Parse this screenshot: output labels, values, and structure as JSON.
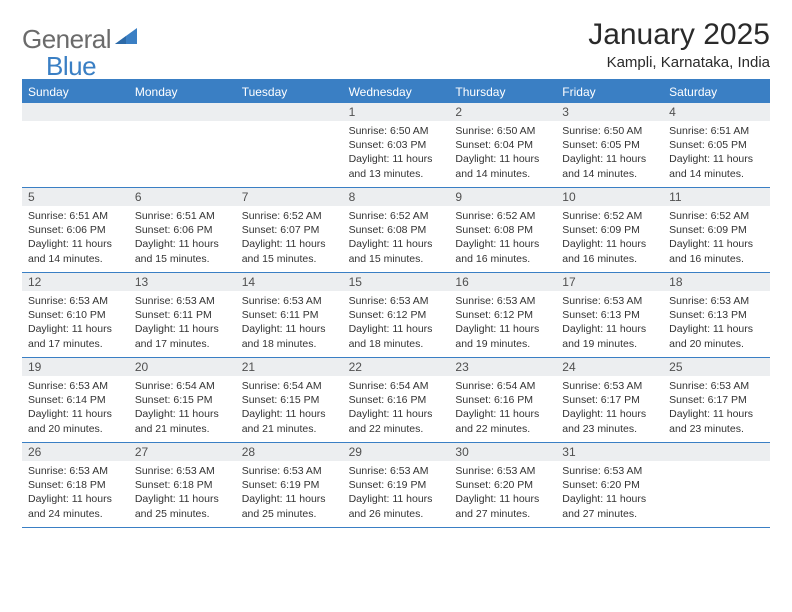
{
  "logo": {
    "text1": "General",
    "text2": "Blue"
  },
  "title": "January 2025",
  "subtitle": "Kampli, Karnataka, India",
  "dayNames": [
    "Sunday",
    "Monday",
    "Tuesday",
    "Wednesday",
    "Thursday",
    "Friday",
    "Saturday"
  ],
  "colors": {
    "accent": "#3a7fc4",
    "headerText": "#ffffff",
    "dayNumBg": "#eceef0",
    "text": "#333333",
    "logoGray": "#6b6b6b"
  },
  "weeks": [
    [
      {
        "num": "",
        "lines": []
      },
      {
        "num": "",
        "lines": []
      },
      {
        "num": "",
        "lines": []
      },
      {
        "num": "1",
        "lines": [
          "Sunrise: 6:50 AM",
          "Sunset: 6:03 PM",
          "Daylight: 11 hours and 13 minutes."
        ]
      },
      {
        "num": "2",
        "lines": [
          "Sunrise: 6:50 AM",
          "Sunset: 6:04 PM",
          "Daylight: 11 hours and 14 minutes."
        ]
      },
      {
        "num": "3",
        "lines": [
          "Sunrise: 6:50 AM",
          "Sunset: 6:05 PM",
          "Daylight: 11 hours and 14 minutes."
        ]
      },
      {
        "num": "4",
        "lines": [
          "Sunrise: 6:51 AM",
          "Sunset: 6:05 PM",
          "Daylight: 11 hours and 14 minutes."
        ]
      }
    ],
    [
      {
        "num": "5",
        "lines": [
          "Sunrise: 6:51 AM",
          "Sunset: 6:06 PM",
          "Daylight: 11 hours and 14 minutes."
        ]
      },
      {
        "num": "6",
        "lines": [
          "Sunrise: 6:51 AM",
          "Sunset: 6:06 PM",
          "Daylight: 11 hours and 15 minutes."
        ]
      },
      {
        "num": "7",
        "lines": [
          "Sunrise: 6:52 AM",
          "Sunset: 6:07 PM",
          "Daylight: 11 hours and 15 minutes."
        ]
      },
      {
        "num": "8",
        "lines": [
          "Sunrise: 6:52 AM",
          "Sunset: 6:08 PM",
          "Daylight: 11 hours and 15 minutes."
        ]
      },
      {
        "num": "9",
        "lines": [
          "Sunrise: 6:52 AM",
          "Sunset: 6:08 PM",
          "Daylight: 11 hours and 16 minutes."
        ]
      },
      {
        "num": "10",
        "lines": [
          "Sunrise: 6:52 AM",
          "Sunset: 6:09 PM",
          "Daylight: 11 hours and 16 minutes."
        ]
      },
      {
        "num": "11",
        "lines": [
          "Sunrise: 6:52 AM",
          "Sunset: 6:09 PM",
          "Daylight: 11 hours and 16 minutes."
        ]
      }
    ],
    [
      {
        "num": "12",
        "lines": [
          "Sunrise: 6:53 AM",
          "Sunset: 6:10 PM",
          "Daylight: 11 hours and 17 minutes."
        ]
      },
      {
        "num": "13",
        "lines": [
          "Sunrise: 6:53 AM",
          "Sunset: 6:11 PM",
          "Daylight: 11 hours and 17 minutes."
        ]
      },
      {
        "num": "14",
        "lines": [
          "Sunrise: 6:53 AM",
          "Sunset: 6:11 PM",
          "Daylight: 11 hours and 18 minutes."
        ]
      },
      {
        "num": "15",
        "lines": [
          "Sunrise: 6:53 AM",
          "Sunset: 6:12 PM",
          "Daylight: 11 hours and 18 minutes."
        ]
      },
      {
        "num": "16",
        "lines": [
          "Sunrise: 6:53 AM",
          "Sunset: 6:12 PM",
          "Daylight: 11 hours and 19 minutes."
        ]
      },
      {
        "num": "17",
        "lines": [
          "Sunrise: 6:53 AM",
          "Sunset: 6:13 PM",
          "Daylight: 11 hours and 19 minutes."
        ]
      },
      {
        "num": "18",
        "lines": [
          "Sunrise: 6:53 AM",
          "Sunset: 6:13 PM",
          "Daylight: 11 hours and 20 minutes."
        ]
      }
    ],
    [
      {
        "num": "19",
        "lines": [
          "Sunrise: 6:53 AM",
          "Sunset: 6:14 PM",
          "Daylight: 11 hours and 20 minutes."
        ]
      },
      {
        "num": "20",
        "lines": [
          "Sunrise: 6:54 AM",
          "Sunset: 6:15 PM",
          "Daylight: 11 hours and 21 minutes."
        ]
      },
      {
        "num": "21",
        "lines": [
          "Sunrise: 6:54 AM",
          "Sunset: 6:15 PM",
          "Daylight: 11 hours and 21 minutes."
        ]
      },
      {
        "num": "22",
        "lines": [
          "Sunrise: 6:54 AM",
          "Sunset: 6:16 PM",
          "Daylight: 11 hours and 22 minutes."
        ]
      },
      {
        "num": "23",
        "lines": [
          "Sunrise: 6:54 AM",
          "Sunset: 6:16 PM",
          "Daylight: 11 hours and 22 minutes."
        ]
      },
      {
        "num": "24",
        "lines": [
          "Sunrise: 6:53 AM",
          "Sunset: 6:17 PM",
          "Daylight: 11 hours and 23 minutes."
        ]
      },
      {
        "num": "25",
        "lines": [
          "Sunrise: 6:53 AM",
          "Sunset: 6:17 PM",
          "Daylight: 11 hours and 23 minutes."
        ]
      }
    ],
    [
      {
        "num": "26",
        "lines": [
          "Sunrise: 6:53 AM",
          "Sunset: 6:18 PM",
          "Daylight: 11 hours and 24 minutes."
        ]
      },
      {
        "num": "27",
        "lines": [
          "Sunrise: 6:53 AM",
          "Sunset: 6:18 PM",
          "Daylight: 11 hours and 25 minutes."
        ]
      },
      {
        "num": "28",
        "lines": [
          "Sunrise: 6:53 AM",
          "Sunset: 6:19 PM",
          "Daylight: 11 hours and 25 minutes."
        ]
      },
      {
        "num": "29",
        "lines": [
          "Sunrise: 6:53 AM",
          "Sunset: 6:19 PM",
          "Daylight: 11 hours and 26 minutes."
        ]
      },
      {
        "num": "30",
        "lines": [
          "Sunrise: 6:53 AM",
          "Sunset: 6:20 PM",
          "Daylight: 11 hours and 27 minutes."
        ]
      },
      {
        "num": "31",
        "lines": [
          "Sunrise: 6:53 AM",
          "Sunset: 6:20 PM",
          "Daylight: 11 hours and 27 minutes."
        ]
      },
      {
        "num": "",
        "lines": []
      }
    ]
  ]
}
